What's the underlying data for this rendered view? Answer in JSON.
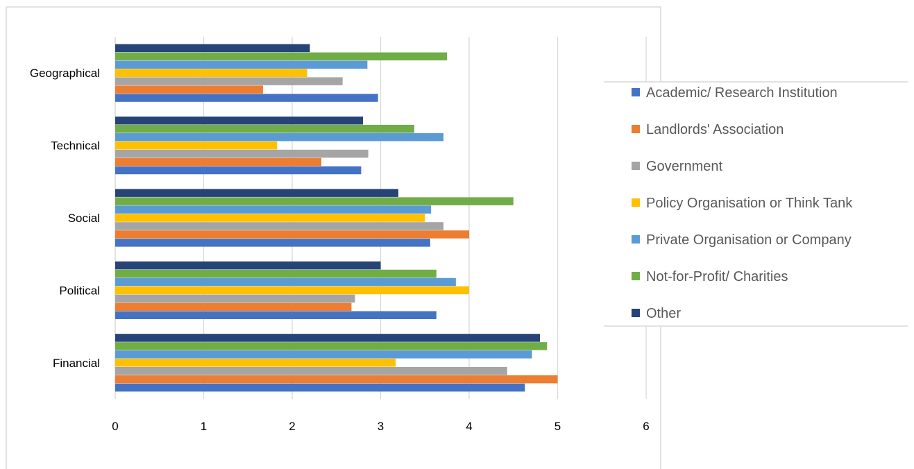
{
  "chart_data": {
    "type": "bar",
    "orientation": "horizontal",
    "title": "",
    "xlabel": "",
    "ylabel": "",
    "xlim": [
      0,
      6
    ],
    "x_ticks": [
      "0",
      "1",
      "2",
      "3",
      "4",
      "5",
      "6"
    ],
    "grid": true,
    "legend_position": "right",
    "categories": [
      "Geographical",
      "Technical",
      "Social",
      "Political",
      "Financial"
    ],
    "series": [
      {
        "name": "Academic/ Research Institution",
        "color": "#4472C4",
        "values": [
          2.97,
          2.78,
          3.56,
          3.63,
          4.63
        ]
      },
      {
        "name": "Landlords' Association",
        "color": "#ED7D31",
        "values": [
          1.67,
          2.33,
          4.0,
          2.67,
          5.0
        ]
      },
      {
        "name": "Government",
        "color": "#A5A5A5",
        "values": [
          2.57,
          2.86,
          3.71,
          2.71,
          4.43
        ]
      },
      {
        "name": "Policy Organisation or Think Tank",
        "color": "#FFC000",
        "values": [
          2.17,
          1.83,
          3.5,
          4.0,
          3.17
        ]
      },
      {
        "name": "Private Organisation or Company",
        "color": "#5B9BD5",
        "values": [
          2.85,
          3.71,
          3.57,
          3.85,
          4.71
        ]
      },
      {
        "name": "Not-for-Profit/ Charities",
        "color": "#70AD47",
        "values": [
          3.75,
          3.38,
          4.5,
          3.63,
          4.88
        ]
      },
      {
        "name": "Other",
        "color": "#264478",
        "values": [
          2.2,
          2.8,
          3.2,
          3.0,
          4.8
        ]
      }
    ]
  }
}
